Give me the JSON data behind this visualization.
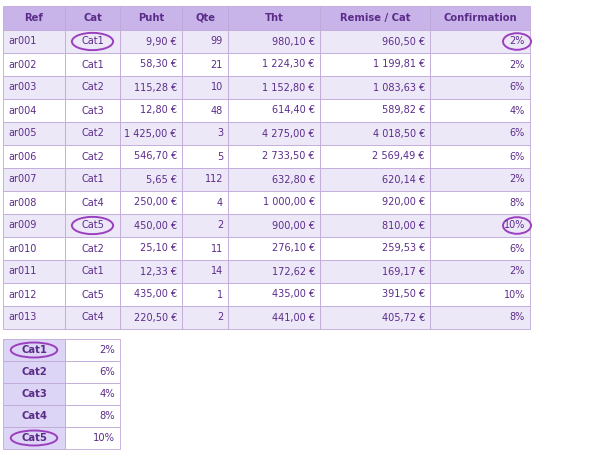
{
  "headers": [
    "Ref",
    "Cat",
    "Puht",
    "Qte",
    "Tht",
    "Remise / Cat",
    "Confirmation"
  ],
  "rows": [
    [
      "ar001",
      "Cat1",
      "9,90 €",
      "99",
      "980,10 €",
      "960,50 €",
      "2%"
    ],
    [
      "ar002",
      "Cat1",
      "58,30 €",
      "21",
      "1 224,30 €",
      "1 199,81 €",
      "2%"
    ],
    [
      "ar003",
      "Cat2",
      "115,28 €",
      "10",
      "1 152,80 €",
      "1 083,63 €",
      "6%"
    ],
    [
      "ar004",
      "Cat3",
      "12,80 €",
      "48",
      "614,40 €",
      "589,82 €",
      "4%"
    ],
    [
      "ar005",
      "Cat2",
      "1 425,00 €",
      "3",
      "4 275,00 €",
      "4 018,50 €",
      "6%"
    ],
    [
      "ar006",
      "Cat2",
      "546,70 €",
      "5",
      "2 733,50 €",
      "2 569,49 €",
      "6%"
    ],
    [
      "ar007",
      "Cat1",
      "5,65 €",
      "112",
      "632,80 €",
      "620,14 €",
      "2%"
    ],
    [
      "ar008",
      "Cat4",
      "250,00 €",
      "4",
      "1 000,00 €",
      "920,00 €",
      "8%"
    ],
    [
      "ar009",
      "Cat5",
      "450,00 €",
      "2",
      "900,00 €",
      "810,00 €",
      "10%"
    ],
    [
      "ar010",
      "Cat2",
      "25,10 €",
      "11",
      "276,10 €",
      "259,53 €",
      "6%"
    ],
    [
      "ar011",
      "Cat1",
      "12,33 €",
      "14",
      "172,62 €",
      "169,17 €",
      "2%"
    ],
    [
      "ar012",
      "Cat5",
      "435,00 €",
      "1",
      "435,00 €",
      "391,50 €",
      "10%"
    ],
    [
      "ar013",
      "Cat4",
      "220,50 €",
      "2",
      "441,00 €",
      "405,72 €",
      "8%"
    ]
  ],
  "cat_table": [
    [
      "Cat1",
      "2%"
    ],
    [
      "Cat2",
      "6%"
    ],
    [
      "Cat3",
      "4%"
    ],
    [
      "Cat4",
      "8%"
    ],
    [
      "Cat5",
      "10%"
    ]
  ],
  "header_bg": "#c8b4e8",
  "row_bg_light": "#ede8f8",
  "row_bg_white": "#ffffff",
  "header_text_color": "#5b2c8a",
  "cell_text_color": "#5b2c8a",
  "border_color": "#c0a8d8",
  "circle_color": "#9b3fbf",
  "cat_row_bg": "#ddd5f5"
}
